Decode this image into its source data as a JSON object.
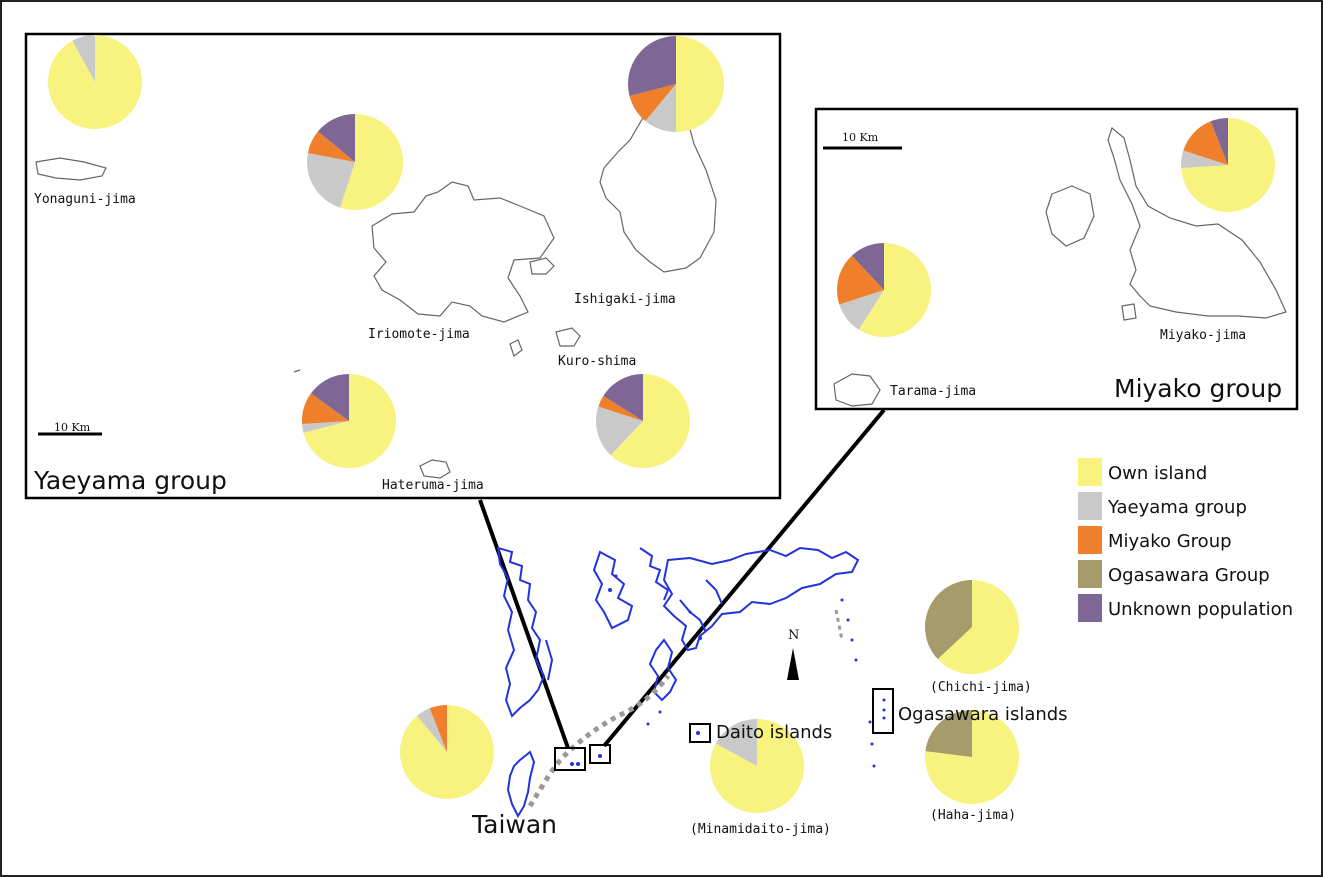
{
  "colors": {
    "own": "#f8f27e",
    "yaeyama": "#c9c9c9",
    "miyako": "#f07f2c",
    "ogasawara": "#a69b6a",
    "unknown": "#7e6795",
    "coast": "#2233dd"
  },
  "legend": [
    {
      "label": "Own island",
      "color": "#f8f27e"
    },
    {
      "label": "Yaeyama group",
      "color": "#c9c9c9"
    },
    {
      "label": "Miyako Group",
      "color": "#f07f2c"
    },
    {
      "label": "Ogasawara Group",
      "color": "#a69b6a"
    },
    {
      "label": "Unknown population",
      "color": "#7e6795"
    }
  ],
  "yaeyama": {
    "title": "Yaeyama group",
    "scale": "10 Km",
    "islands": {
      "yonaguni": "Yonaguni-jima",
      "iriomote": "Iriomote-jima",
      "ishigaki": "Ishigaki-jima",
      "kuroshima": "Kuro-shima",
      "hateruma": "Hateruma-jima"
    }
  },
  "miyako": {
    "title": "Miyako group",
    "scale": "10 Km",
    "islands": {
      "miyako": "Miyako-jima",
      "tarama": "Tarama-jima"
    }
  },
  "main": {
    "taiwan": "Taiwan",
    "daito": "Daito islands",
    "ogasawara": "Ogasawara islands",
    "chichi": "(Chichi-jima)",
    "haha": "(Haha-jima)",
    "minamidaito": "(Minamidaito-jima)",
    "north": "N"
  },
  "chart_data": {
    "type": "pie",
    "categories": [
      "Own island",
      "Yaeyama group",
      "Miyako Group",
      "Ogasawara Group",
      "Unknown population"
    ],
    "pies": [
      {
        "name": "Yonaguni-jima",
        "values": [
          0.92,
          0.08,
          0,
          0,
          0
        ]
      },
      {
        "name": "Iriomote-jima",
        "values": [
          0.55,
          0.23,
          0.08,
          0,
          0.14
        ]
      },
      {
        "name": "Ishigaki-jima",
        "values": [
          0.5,
          0.11,
          0.1,
          0,
          0.29
        ]
      },
      {
        "name": "Kuro-shima",
        "values": [
          0.62,
          0.18,
          0.04,
          0,
          0.16
        ]
      },
      {
        "name": "Hateruma-jima",
        "values": [
          0.71,
          0.03,
          0.11,
          0,
          0.15
        ]
      },
      {
        "name": "Miyako-jima",
        "values": [
          0.74,
          0.06,
          0.14,
          0,
          0.06
        ]
      },
      {
        "name": "Tarama-jima",
        "values": [
          0.59,
          0.11,
          0.18,
          0,
          0.12
        ]
      },
      {
        "name": "Taiwan",
        "values": [
          0.89,
          0.05,
          0.06,
          0,
          0
        ]
      },
      {
        "name": "Minamidaito-jima",
        "values": [
          0.83,
          0.17,
          0,
          0,
          0
        ]
      },
      {
        "name": "Chichi-jima",
        "values": [
          0.63,
          0,
          0,
          0.37,
          0
        ]
      },
      {
        "name": "Haha-jima",
        "values": [
          0.77,
          0,
          0,
          0.23,
          0
        ]
      }
    ]
  }
}
